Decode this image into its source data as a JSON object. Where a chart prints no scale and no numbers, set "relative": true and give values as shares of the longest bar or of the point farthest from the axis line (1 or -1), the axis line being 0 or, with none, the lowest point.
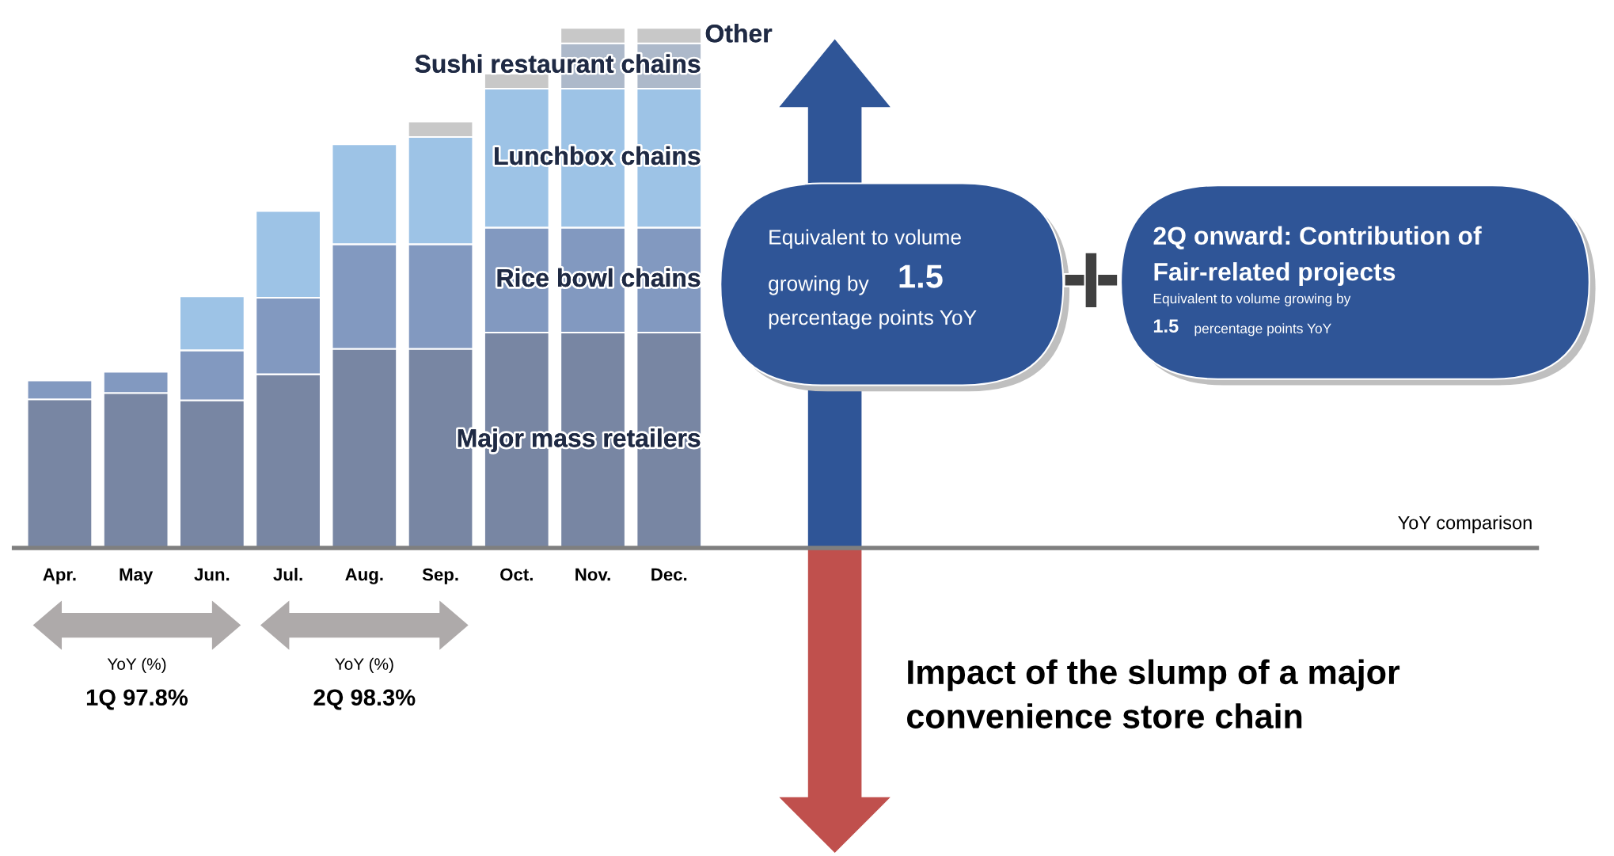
{
  "chart_data": {
    "type": "bar",
    "stacked": true,
    "relative": true,
    "legend": false,
    "grid": false,
    "tick_labels": "x",
    "categories": [
      "Apr.",
      "May",
      "Jun.",
      "Jul.",
      "Aug.",
      "Sep.",
      "Oct.",
      "Nov.",
      "Dec."
    ],
    "series": [
      {
        "name": "Major mass retailers",
        "color": "#7886a3",
        "values": [
          0.286,
          0.298,
          0.284,
          0.334,
          0.383,
          0.383,
          0.414,
          0.414,
          0.414
        ]
      },
      {
        "name": "Rice bowl chains",
        "color": "#8299c0",
        "values": [
          0.036,
          0.041,
          0.096,
          0.147,
          0.201,
          0.201,
          0.202,
          0.202,
          0.202
        ]
      },
      {
        "name": "Lunchbox chains",
        "color": "#9dc3e6",
        "values": [
          null,
          null,
          0.104,
          0.167,
          0.192,
          0.206,
          0.267,
          0.267,
          0.267
        ]
      },
      {
        "name": "Sushi restaurant chains",
        "color": "#adb9ca",
        "values": [
          null,
          null,
          null,
          null,
          null,
          null,
          null,
          0.087,
          0.087
        ]
      },
      {
        "name": "Other",
        "color": "#c8c8c8",
        "values": [
          null,
          null,
          null,
          null,
          null,
          0.03,
          0.029,
          0.03,
          0.03
        ]
      }
    ],
    "annotations": [
      "YoY comparison",
      "Equivalent to volume",
      "growing by",
      "1.5",
      "percentage points YoY",
      "2Q onward: Contribution of",
      "Fair-related projects",
      "Equivalent to volume growing by",
      "1.5",
      "percentage points YoY",
      "YoY (%)",
      "1Q 97.8%",
      "YoY (%)",
      "2Q 98.3%",
      "Impact of the slump of a major convenience store chain"
    ]
  }
}
